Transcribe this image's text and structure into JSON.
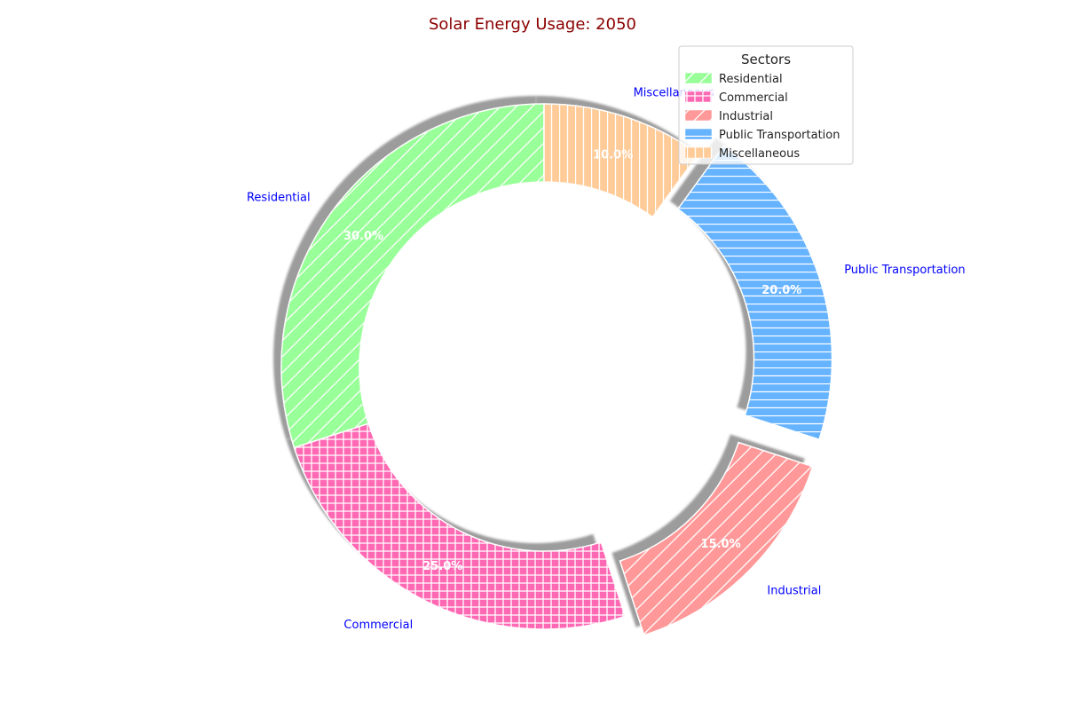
{
  "chart_data": {
    "type": "pie",
    "title": "Solar Energy Usage: 2050",
    "categories": [
      "Residential",
      "Commercial",
      "Industrial",
      "Public Transportation",
      "Miscellaneous"
    ],
    "values": [
      30,
      25,
      15,
      20,
      10
    ],
    "percent_labels": [
      "30.0%",
      "25.0%",
      "15.0%",
      "20.0%",
      "10.0%"
    ],
    "colors": [
      "#99ff99",
      "#ff69b4",
      "#ff9999",
      "#66b3ff",
      "#ffcc99"
    ],
    "hatches": [
      "diagonal-forward",
      "grid",
      "diagonal-forward",
      "horizontal",
      "vertical"
    ],
    "exploded": [
      false,
      false,
      true,
      true,
      false
    ],
    "donut": true,
    "shadow": true,
    "start_angle": 90,
    "direction": "counterclockwise",
    "legend": {
      "title": "Sectors",
      "placement": "top-right",
      "entries": [
        "Residential",
        "Commercial",
        "Industrial",
        "Public Transportation",
        "Miscellaneous"
      ]
    },
    "title_color": "#8b0000",
    "label_color": "#0000ff",
    "pct_color": "#ffffff"
  }
}
